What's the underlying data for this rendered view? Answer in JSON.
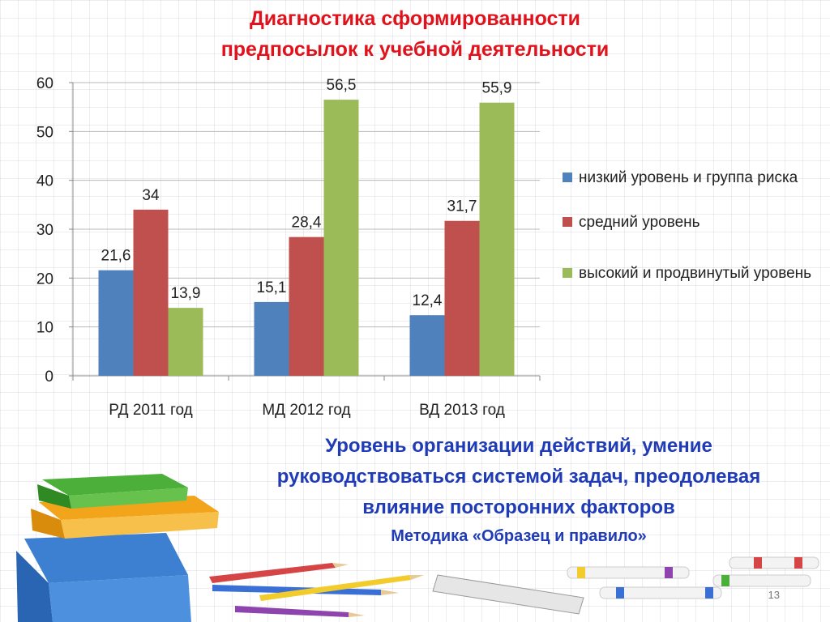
{
  "title": {
    "line1": "Диагностика сформированности",
    "line2": "предпосылок к учебной деятельности"
  },
  "chart_data": {
    "type": "bar",
    "categories": [
      "РД 2011 год",
      "МД 2012 год",
      "ВД 2013 год"
    ],
    "series": [
      {
        "name": "низкий уровень и группа риска",
        "color": "#4f81bd",
        "values": [
          21.6,
          15.1,
          12.4
        ],
        "labels": [
          "21,6",
          "15,1",
          "12,4"
        ]
      },
      {
        "name": "средний уровень",
        "color": "#c0504d",
        "values": [
          34,
          28.4,
          31.7
        ],
        "labels": [
          "34",
          "28,4",
          "31,7"
        ]
      },
      {
        "name": "высокий и продвинутый уровень",
        "color": "#9bbb59",
        "values": [
          13.9,
          56.5,
          55.9
        ],
        "labels": [
          "13,9",
          "56,5",
          "55,9"
        ]
      }
    ],
    "ylim": [
      0,
      60
    ],
    "yticks": [
      0,
      10,
      20,
      30,
      40,
      50,
      60
    ],
    "grid": true,
    "legend_position": "right"
  },
  "subtitle": {
    "line1": "Уровень организации действий, умение",
    "line2": "руководствоваться системой задач, преодолевая",
    "line3": "влияние посторонних факторов"
  },
  "method": "Методика «Образец и правило»",
  "page_number": "13",
  "decorations": [
    "books-stack-icon",
    "pencils-icon",
    "ruler-icon",
    "markers-icon"
  ]
}
